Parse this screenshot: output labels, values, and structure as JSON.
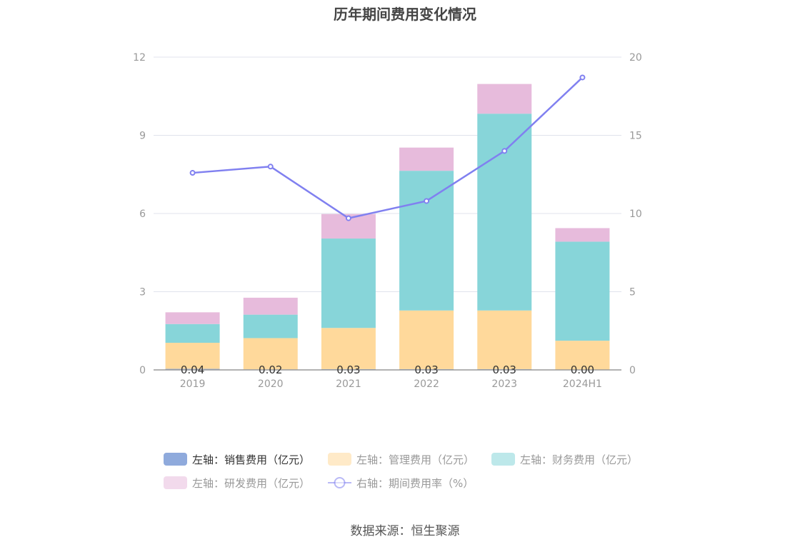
{
  "chart_data": {
    "type": "bar",
    "title": "历年期间费用变化情况",
    "categories": [
      "2019",
      "2020",
      "2021",
      "2022",
      "2023",
      "2024H1"
    ],
    "y_left": {
      "min": 0,
      "max": 12,
      "ticks": [
        "0",
        "3",
        "6",
        "9",
        "12"
      ]
    },
    "y_right": {
      "min": 0,
      "max": 20,
      "ticks": [
        "0",
        "5",
        "10",
        "15",
        "20"
      ]
    },
    "grid": true,
    "legend_position": "bottom",
    "series": [
      {
        "name": "左轴：销售费用（亿元）",
        "axis": "left",
        "kind": "bar",
        "color": "#8faadc",
        "values": [
          0.04,
          0.02,
          0.03,
          0.03,
          0.03,
          0.0
        ]
      },
      {
        "name": "左轴：管理费用（亿元）",
        "axis": "left",
        "kind": "bar",
        "color": "#ffd99b",
        "values": [
          1.0,
          1.2,
          1.58,
          2.25,
          2.25,
          1.12
        ]
      },
      {
        "name": "左轴：财务费用（亿元）",
        "axis": "left",
        "kind": "bar",
        "color": "#87d5d9",
        "values": [
          0.72,
          0.9,
          3.43,
          5.36,
          7.55,
          3.8
        ]
      },
      {
        "name": "左轴：研发费用（亿元）",
        "axis": "left",
        "kind": "bar",
        "color": "#e7bbdc",
        "values": [
          0.45,
          0.65,
          0.94,
          0.89,
          1.14,
          0.52
        ]
      },
      {
        "name": "右轴：期间费用率（%）",
        "axis": "right",
        "kind": "line",
        "color": "#8080f0",
        "values": [
          12.6,
          13.0,
          9.7,
          10.8,
          14.0,
          18.7
        ]
      }
    ],
    "data_labels": [
      "0.04",
      "0.02",
      "0.03",
      "0.03",
      "0.03",
      "0.00"
    ]
  },
  "source": "数据来源：恒生聚源"
}
